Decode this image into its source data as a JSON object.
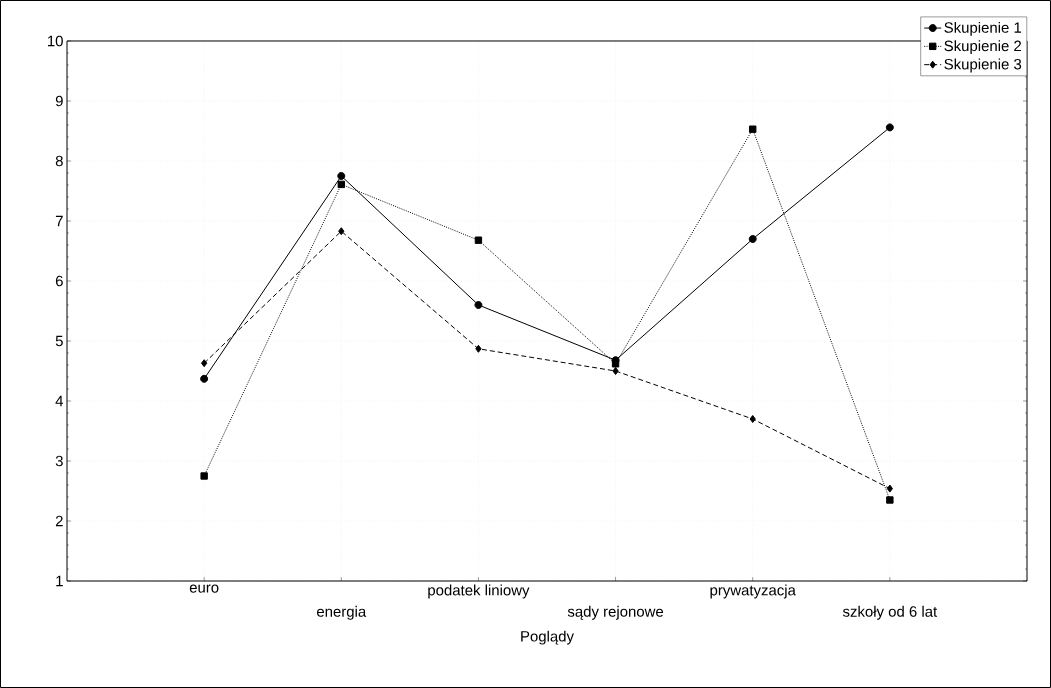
{
  "chart_data": {
    "type": "line",
    "xlabel": "Poglądy",
    "categories": [
      "euro",
      "energia",
      "podatek liniowy",
      "sądy rejonowe",
      "prywatyzacja",
      "szkoły od 6 lat"
    ],
    "series": [
      {
        "name": "Skupienie 1",
        "color": "#000000",
        "marker": "circle",
        "line_style": "solid",
        "values": [
          4.37,
          7.75,
          5.6,
          4.68,
          6.7,
          8.56
        ]
      },
      {
        "name": "Skupienie 2",
        "color": "#000000",
        "marker": "square",
        "line_style": "dotted",
        "values": [
          2.75,
          7.61,
          6.68,
          4.62,
          8.53,
          2.35
        ]
      },
      {
        "name": "Skupienie 3",
        "color": "#000000",
        "marker": "diamond",
        "line_style": "dashed",
        "values": [
          4.63,
          6.83,
          4.87,
          4.5,
          3.7,
          2.54
        ]
      }
    ],
    "ylim": [
      1,
      10
    ],
    "yticks": [
      1,
      2,
      3,
      4,
      5,
      6,
      7,
      8,
      9,
      10
    ],
    "grid": true,
    "legend": "top right"
  }
}
